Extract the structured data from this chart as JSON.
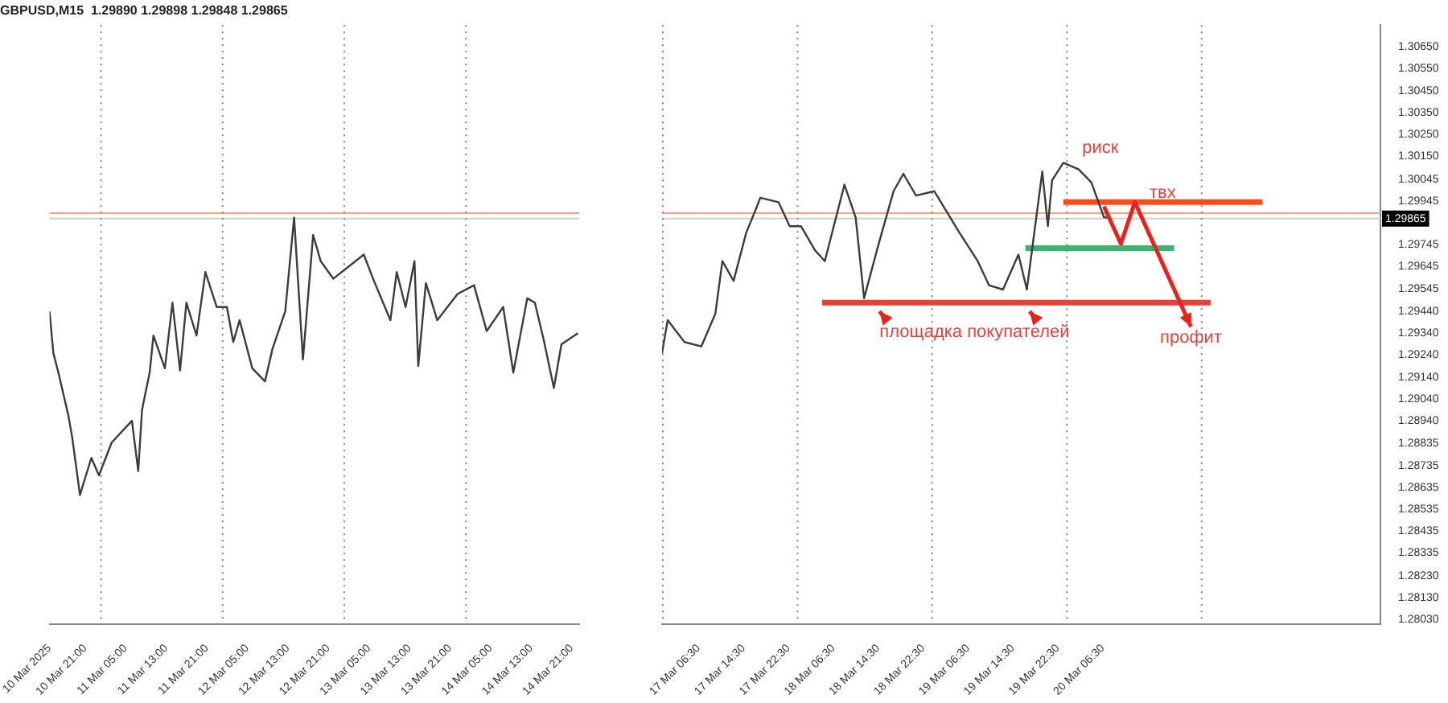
{
  "chart_data": [
    {
      "type": "line",
      "title": "GBPUSD,M15  1.29890 1.29898 1.29848 1.29865",
      "tick_labels": "x",
      "xlim": [
        "2025-03-10T14:00",
        "2025-03-14T22:30"
      ],
      "xticks": [
        {
          "value": "2025-03-10T14:00",
          "label": "10 Mar 2025"
        },
        {
          "value": "2025-03-10T21:00",
          "label": "10 Mar 21:00"
        },
        {
          "value": "2025-03-11T05:00",
          "label": "11 Mar 05:00"
        },
        {
          "value": "2025-03-11T13:00",
          "label": "11 Mar 13:00"
        },
        {
          "value": "2025-03-11T21:00",
          "label": "11 Mar 21:00"
        },
        {
          "value": "2025-03-12T05:00",
          "label": "12 Mar 05:00"
        },
        {
          "value": "2025-03-12T13:00",
          "label": "12 Mar 13:00"
        },
        {
          "value": "2025-03-12T21:00",
          "label": "12 Mar 21:00"
        },
        {
          "value": "2025-03-13T05:00",
          "label": "13 Mar 05:00"
        },
        {
          "value": "2025-03-13T13:00",
          "label": "13 Mar 13:00"
        },
        {
          "value": "2025-03-13T21:00",
          "label": "13 Mar 21:00"
        },
        {
          "value": "2025-03-14T05:00",
          "label": "14 Mar 05:00"
        },
        {
          "value": "2025-03-14T13:00",
          "label": "14 Mar 13:00"
        },
        {
          "value": "2025-03-14T21:00",
          "label": "14 Mar 21:00"
        }
      ],
      "ylim": [
        1.2801,
        1.3075
      ],
      "series": [
        {
          "color": "#3c3c3c",
          "x": [
            "2025-03-10T14:00",
            "2025-03-10T14:45",
            "2025-03-10T15:45",
            "2025-03-10T17:45",
            "2025-03-10T18:30",
            "2025-03-10T20:00",
            "2025-03-10T22:15",
            "2025-03-10T23:45",
            "2025-03-11T02:15",
            "2025-03-11T06:15",
            "2025-03-11T07:30",
            "2025-03-11T08:15",
            "2025-03-11T09:45",
            "2025-03-11T10:30",
            "2025-03-11T12:45",
            "2025-03-11T14:15",
            "2025-03-11T15:45",
            "2025-03-11T17:00",
            "2025-03-11T19:00",
            "2025-03-11T20:45",
            "2025-03-11T23:00",
            "2025-03-12T01:00",
            "2025-03-12T02:15",
            "2025-03-12T03:30",
            "2025-03-12T06:00",
            "2025-03-12T08:30",
            "2025-03-12T10:00",
            "2025-03-12T12:30",
            "2025-03-12T14:15",
            "2025-03-12T16:00",
            "2025-03-12T18:00",
            "2025-03-12T19:30",
            "2025-03-12T22:00",
            "2025-03-13T04:00",
            "2025-03-13T06:00",
            "2025-03-13T09:15",
            "2025-03-13T10:30",
            "2025-03-13T12:15",
            "2025-03-13T14:00",
            "2025-03-13T14:45",
            "2025-03-13T16:15",
            "2025-03-13T18:30",
            "2025-03-13T22:30",
            "2025-03-14T01:45",
            "2025-03-14T04:15",
            "2025-03-14T07:30",
            "2025-03-14T09:30",
            "2025-03-14T12:15",
            "2025-03-14T13:45",
            "2025-03-14T15:30",
            "2025-03-14T17:30",
            "2025-03-14T19:00",
            "2025-03-14T22:15"
          ],
          "values": [
            1.2944,
            1.2925,
            1.2916,
            1.2896,
            1.2886,
            1.286,
            1.2877,
            1.2869,
            1.2884,
            1.2894,
            1.2871,
            1.2899,
            1.2916,
            1.2933,
            1.2918,
            1.2948,
            1.2917,
            1.2948,
            1.2933,
            1.2962,
            1.2946,
            1.2946,
            1.293,
            1.294,
            1.2918,
            1.2912,
            1.2927,
            1.2944,
            1.2987,
            1.2922,
            1.2979,
            1.2967,
            1.2959,
            1.297,
            1.2958,
            1.294,
            1.2962,
            1.2946,
            1.2967,
            1.2919,
            1.2957,
            1.294,
            1.2952,
            1.2956,
            1.2935,
            1.2946,
            1.2916,
            1.295,
            1.2948,
            1.2931,
            1.2909,
            1.2929,
            1.2934
          ]
        }
      ],
      "ref_lines": [
        {
          "axis": "y",
          "value": 1.2989,
          "label": null,
          "color": "#f4a582",
          "line_style": "solid"
        },
        {
          "axis": "y",
          "value": 1.29865,
          "label": null,
          "color": "#d0d0d0",
          "line_style": "solid"
        },
        {
          "axis": "x",
          "value": "2025-03-11T00:00",
          "label": null,
          "color": "#808080",
          "line_style": "dotted"
        },
        {
          "axis": "x",
          "value": "2025-03-12T00:00",
          "label": null,
          "color": "#808080",
          "line_style": "dotted"
        },
        {
          "axis": "x",
          "value": "2025-03-13T00:00",
          "label": null,
          "color": "#808080",
          "line_style": "dotted"
        },
        {
          "axis": "x",
          "value": "2025-03-14T00:00",
          "label": null,
          "color": "#808080",
          "line_style": "dotted"
        }
      ]
    },
    {
      "type": "line",
      "xlim": [
        "2025-03-17T00:00",
        "2025-03-22T08:00"
      ],
      "xticks": [
        {
          "value": "2025-03-17T06:30",
          "label": "17 Mar 06:30"
        },
        {
          "value": "2025-03-17T14:30",
          "label": "17 Mar 14:30"
        },
        {
          "value": "2025-03-17T22:30",
          "label": "17 Mar 22:30"
        },
        {
          "value": "2025-03-18T06:30",
          "label": "18 Mar 06:30"
        },
        {
          "value": "2025-03-18T14:30",
          "label": "18 Mar 14:30"
        },
        {
          "value": "2025-03-18T22:30",
          "label": "18 Mar 22:30"
        },
        {
          "value": "2025-03-19T06:30",
          "label": "19 Mar 06:30"
        },
        {
          "value": "2025-03-19T14:30",
          "label": "19 Mar 14:30"
        },
        {
          "value": "2025-03-19T22:30",
          "label": "19 Mar 22:30"
        },
        {
          "value": "2025-03-20T06:30",
          "label": "20 Mar 06:30"
        }
      ],
      "ylim": [
        1.2801,
        1.3075
      ],
      "yticks": [
        {
          "value": 1.3065,
          "label": "1.30650"
        },
        {
          "value": 1.3055,
          "label": "1.30550"
        },
        {
          "value": 1.3045,
          "label": "1.30450"
        },
        {
          "value": 1.3035,
          "label": "1.30350"
        },
        {
          "value": 1.3025,
          "label": "1.30250"
        },
        {
          "value": 1.3015,
          "label": "1.30150"
        },
        {
          "value": 1.30045,
          "label": "1.30045"
        },
        {
          "value": 1.29945,
          "label": "1.29945"
        },
        {
          "value": 1.29745,
          "label": "1.29745"
        },
        {
          "value": 1.29645,
          "label": "1.29645"
        },
        {
          "value": 1.29545,
          "label": "1.29545"
        },
        {
          "value": 1.2944,
          "label": "1.29440"
        },
        {
          "value": 1.2934,
          "label": "1.29340"
        },
        {
          "value": 1.2924,
          "label": "1.29240"
        },
        {
          "value": 1.2914,
          "label": "1.29140"
        },
        {
          "value": 1.2904,
          "label": "1.29040"
        },
        {
          "value": 1.2894,
          "label": "1.28940"
        },
        {
          "value": 1.28835,
          "label": "1.28835"
        },
        {
          "value": 1.28735,
          "label": "1.28735"
        },
        {
          "value": 1.28635,
          "label": "1.28635"
        },
        {
          "value": 1.28535,
          "label": "1.28535"
        },
        {
          "value": 1.28435,
          "label": "1.28435"
        },
        {
          "value": 1.28335,
          "label": "1.28335"
        },
        {
          "value": 1.2823,
          "label": "1.28230"
        },
        {
          "value": 1.2813,
          "label": "1.28130"
        },
        {
          "value": 1.2803,
          "label": "1.28030"
        }
      ],
      "series": [
        {
          "color": "#3c3c3c",
          "x": [
            "2025-03-17T00:00",
            "2025-03-17T01:00",
            "2025-03-17T04:00",
            "2025-03-17T07:00",
            "2025-03-17T09:30",
            "2025-03-17T10:45",
            "2025-03-17T12:45",
            "2025-03-17T15:00",
            "2025-03-17T16:45",
            "2025-03-17T17:30",
            "2025-03-17T20:45",
            "2025-03-17T22:45",
            "2025-03-18T00:45",
            "2025-03-18T03:15",
            "2025-03-18T05:00",
            "2025-03-18T08:30",
            "2025-03-18T10:30",
            "2025-03-18T12:00",
            "2025-03-18T14:30",
            "2025-03-18T17:15",
            "2025-03-18T19:00",
            "2025-03-18T21:15",
            "2025-03-19T00:30",
            "2025-03-19T05:00",
            "2025-03-19T08:15",
            "2025-03-19T10:15",
            "2025-03-19T12:45",
            "2025-03-19T15:30",
            "2025-03-19T17:00",
            "2025-03-19T19:45",
            "2025-03-19T20:45",
            "2025-03-19T21:30",
            "2025-03-19T23:30",
            "2025-03-20T02:15",
            "2025-03-20T04:30",
            "2025-03-20T06:45",
            "2025-03-20T07:30"
          ],
          "values": [
            1.2925,
            1.294,
            1.293,
            1.2928,
            1.2943,
            1.2967,
            1.2958,
            1.298,
            1.2991,
            1.2996,
            1.2994,
            1.2983,
            1.2983,
            1.2972,
            1.2967,
            1.3002,
            1.2987,
            1.295,
            1.2974,
            1.2999,
            1.3007,
            1.2997,
            1.2999,
            1.298,
            1.2967,
            1.2956,
            1.2954,
            1.297,
            1.2954,
            1.3008,
            1.2983,
            1.3004,
            1.3012,
            1.3009,
            1.3003,
            1.2987,
            1.2987
          ]
        },
        {
          "color": "#ff4a1c",
          "x": [
            "2025-03-19T23:30",
            "2025-03-21T11:00"
          ],
          "values": [
            1.2994,
            1.2994
          ]
        },
        {
          "color": "#3cb371",
          "x": [
            "2025-03-19T16:45",
            "2025-03-20T19:15"
          ],
          "values": [
            1.2973,
            1.2973
          ]
        },
        {
          "color": "#e8413c",
          "x": [
            "2025-03-18T04:30",
            "2025-03-21T01:45"
          ],
          "values": [
            1.2948,
            1.2948
          ]
        }
      ],
      "ref_lines": [
        {
          "axis": "y",
          "value": 1.2989,
          "label": null,
          "color": "#f4a582",
          "line_style": "solid"
        },
        {
          "axis": "y",
          "value": 1.29865,
          "label": "1.29865",
          "color": "#d0d0d0",
          "line_style": "solid"
        },
        {
          "axis": "x",
          "value": "2025-03-17T00:00",
          "label": null,
          "color": "#808080",
          "line_style": "dotted"
        },
        {
          "axis": "x",
          "value": "2025-03-18T00:00",
          "label": null,
          "color": "#808080",
          "line_style": "dotted"
        },
        {
          "axis": "x",
          "value": "2025-03-19T00:00",
          "label": null,
          "color": "#808080",
          "line_style": "dotted"
        },
        {
          "axis": "x",
          "value": "2025-03-20T00:00",
          "label": null,
          "color": "#808080",
          "line_style": "dotted"
        },
        {
          "axis": "x",
          "value": "2025-03-21T00:00",
          "label": null,
          "color": "#808080",
          "line_style": "dotted"
        }
      ],
      "annotations": [
        "риск",
        "твх",
        "площадка покупателей",
        {
          "text": "профит",
          "x": "2025-03-20T22:15",
          "y": 1.2948
        }
      ]
    }
  ]
}
